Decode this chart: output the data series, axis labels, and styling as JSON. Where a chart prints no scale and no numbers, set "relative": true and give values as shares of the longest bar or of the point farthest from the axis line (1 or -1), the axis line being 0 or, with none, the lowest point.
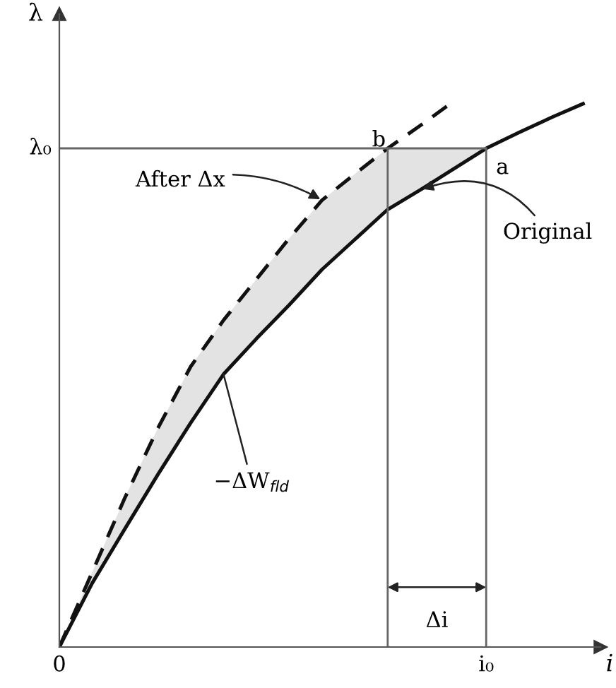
{
  "chart_data": {
    "type": "line",
    "relative": true,
    "xlabel": "i",
    "ylabel": "λ",
    "categories": [
      null,
      null,
      null,
      null,
      null,
      null,
      null,
      null,
      null,
      null,
      null,
      null,
      null,
      null,
      null,
      null,
      null
    ],
    "series": [
      {
        "line_style": "solid",
        "color": "#111111",
        "values": [
          0,
          0.117,
          0.217,
          0.316,
          0.411,
          0.5,
          0.565,
          0.627,
          0.692,
          0.747,
          0.802,
          0.838,
          0.876,
          0.914,
          0.943,
          0.971,
          0.997
        ],
        "lower": [
          0,
          0.117,
          0.217,
          0.316,
          0.411,
          0.5,
          0.565,
          0.627,
          0.692,
          0.747,
          0.802,
          0.838,
          0.876,
          0.914,
          null,
          null,
          null
        ],
        "upper": [
          0,
          0.137,
          0.274,
          0.401,
          0.514,
          0.599,
          0.674,
          0.749,
          0.819,
          0.867,
          0.914,
          0.914,
          0.914,
          0.914,
          null,
          null,
          null
        ]
      },
      {
        "line_style": "dashed",
        "color": "#111111",
        "values": [
          0,
          0.137,
          0.274,
          0.401,
          0.514,
          0.599,
          0.674,
          0.749,
          0.819,
          0.867,
          0.914,
          0.956,
          1,
          null,
          null,
          null,
          null
        ]
      },
      {
        "line_style": "solid",
        "color": "#666666",
        "values": [
          0.914,
          0.914,
          0.914,
          0.914,
          0.914,
          0.914,
          0.914,
          0.914,
          0.914,
          0.914,
          0.914,
          0.914,
          0.914,
          0.914,
          null,
          null,
          null
        ]
      }
    ],
    "annotations": [
      "After Δx",
      "Original",
      "−ΔW$_{fld}$",
      "a",
      "b",
      "Δi",
      "0",
      "i₀",
      "λ₀"
    ]
  }
}
